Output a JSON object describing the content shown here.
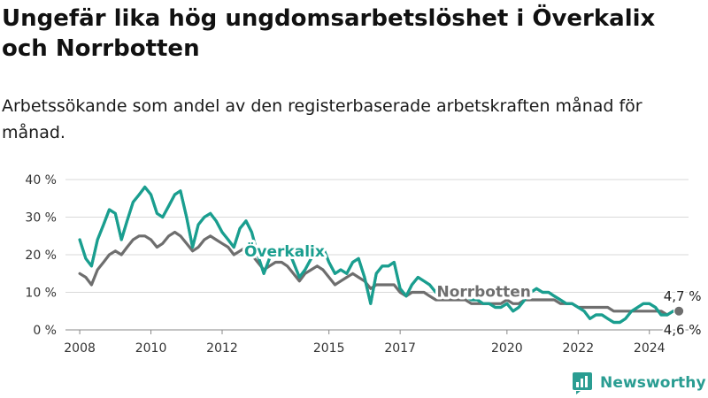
{
  "title": "Ungefär lika hög ungdomsarbetslöshet i Överkalix och Norrbotten",
  "subtitle": "Arbetssökande som andel av den registerbaserade arbetskraften månad för månad.",
  "brand": "Newsworthy",
  "colors": {
    "overkalix": "#1a9e8f",
    "norrbotten": "#6e6e6e",
    "grid": "#d9d9d9"
  },
  "chart_data": {
    "type": "line",
    "title": "Ungefär lika hög ungdomsarbetslöshet i Överkalix och Norrbotten",
    "subtitle": "Arbetssökande som andel av den registerbaserade arbetskraften månad för månad.",
    "x_ticks": [
      "2008",
      "2010",
      "2012",
      "2015",
      "2017",
      "2020",
      "2022",
      "2024"
    ],
    "y_ticks": [
      "0 %",
      "10 %",
      "20 %",
      "30 %",
      "40 %"
    ],
    "ylim": [
      0,
      40
    ],
    "xlim": [
      2007.6,
      2025.1
    ],
    "grid": true,
    "series": [
      {
        "name": "Överkalix",
        "color": "#1a9e8f",
        "last_label": "4,7 %",
        "x": [
          2008.0,
          2008.17,
          2008.33,
          2008.5,
          2008.67,
          2008.83,
          2009.0,
          2009.17,
          2009.33,
          2009.5,
          2009.67,
          2009.83,
          2010.0,
          2010.17,
          2010.33,
          2010.5,
          2010.67,
          2010.83,
          2011.0,
          2011.17,
          2011.33,
          2011.5,
          2011.67,
          2011.83,
          2012.0,
          2012.17,
          2012.33,
          2012.5,
          2012.67,
          2012.83,
          2013.0,
          2013.17,
          2013.33,
          2013.5,
          2013.67,
          2013.83,
          2014.0,
          2014.17,
          2014.33,
          2014.5,
          2014.67,
          2014.83,
          2015.0,
          2015.17,
          2015.33,
          2015.5,
          2015.67,
          2015.83,
          2016.0,
          2016.17,
          2016.33,
          2016.5,
          2016.67,
          2016.83,
          2017.0,
          2017.17,
          2017.33,
          2017.5,
          2017.67,
          2017.83,
          2018.0,
          2018.17,
          2018.33,
          2018.5,
          2018.67,
          2018.83,
          2019.0,
          2019.17,
          2019.33,
          2019.5,
          2019.67,
          2019.83,
          2020.0,
          2020.17,
          2020.33,
          2020.5,
          2020.67,
          2020.83,
          2021.0,
          2021.17,
          2021.33,
          2021.5,
          2021.67,
          2021.83,
          2022.0,
          2022.17,
          2022.33,
          2022.5,
          2022.67,
          2022.83,
          2023.0,
          2023.17,
          2023.33,
          2023.5,
          2023.67,
          2023.83,
          2024.0,
          2024.17,
          2024.33,
          2024.5,
          2024.67,
          2024.83
        ],
        "y": [
          24,
          19,
          17,
          24,
          28,
          32,
          31,
          24,
          29,
          34,
          36,
          38,
          36,
          31,
          30,
          33,
          36,
          37,
          30,
          22,
          28,
          30,
          31,
          29,
          26,
          24,
          22,
          27,
          29,
          26,
          20,
          15,
          19,
          21,
          22,
          22,
          18,
          14,
          16,
          19,
          21,
          22,
          18,
          15,
          16,
          15,
          18,
          19,
          14,
          7,
          15,
          17,
          17,
          18,
          11,
          9,
          12,
          14,
          13,
          12,
          10,
          11,
          11,
          9,
          10,
          9,
          8,
          8,
          7,
          7,
          6,
          6,
          7,
          5,
          6,
          8,
          10,
          11,
          10,
          10,
          9,
          8,
          7,
          7,
          6,
          5,
          3,
          4,
          4,
          3,
          2,
          2,
          3,
          5,
          6,
          7,
          7,
          6,
          4,
          4,
          5,
          5
        ]
      },
      {
        "name": "Norrbotten",
        "color": "#6e6e6e",
        "last_label": "4,6 %",
        "x": [
          2008.0,
          2008.17,
          2008.33,
          2008.5,
          2008.67,
          2008.83,
          2009.0,
          2009.17,
          2009.33,
          2009.5,
          2009.67,
          2009.83,
          2010.0,
          2010.17,
          2010.33,
          2010.5,
          2010.67,
          2010.83,
          2011.0,
          2011.17,
          2011.33,
          2011.5,
          2011.67,
          2011.83,
          2012.0,
          2012.17,
          2012.33,
          2012.5,
          2012.67,
          2012.83,
          2013.0,
          2013.17,
          2013.33,
          2013.5,
          2013.67,
          2013.83,
          2014.0,
          2014.17,
          2014.33,
          2014.5,
          2014.67,
          2014.83,
          2015.0,
          2015.17,
          2015.33,
          2015.5,
          2015.67,
          2015.83,
          2016.0,
          2016.17,
          2016.33,
          2016.5,
          2016.67,
          2016.83,
          2017.0,
          2017.17,
          2017.33,
          2017.5,
          2017.67,
          2017.83,
          2018.0,
          2018.17,
          2018.33,
          2018.5,
          2018.67,
          2018.83,
          2019.0,
          2019.17,
          2019.33,
          2019.5,
          2019.67,
          2019.83,
          2020.0,
          2020.17,
          2020.33,
          2020.5,
          2020.67,
          2020.83,
          2021.0,
          2021.17,
          2021.33,
          2021.5,
          2021.67,
          2021.83,
          2022.0,
          2022.17,
          2022.33,
          2022.5,
          2022.67,
          2022.83,
          2023.0,
          2023.17,
          2023.33,
          2023.5,
          2023.67,
          2023.83,
          2024.0,
          2024.17,
          2024.33,
          2024.5,
          2024.67,
          2024.83
        ],
        "y": [
          15,
          14,
          12,
          16,
          18,
          20,
          21,
          20,
          22,
          24,
          25,
          25,
          24,
          22,
          23,
          25,
          26,
          25,
          23,
          21,
          22,
          24,
          25,
          24,
          23,
          22,
          20,
          21,
          22,
          20,
          18,
          16,
          17,
          18,
          18,
          17,
          15,
          13,
          15,
          16,
          17,
          16,
          14,
          12,
          13,
          14,
          15,
          14,
          13,
          11,
          12,
          12,
          12,
          12,
          10,
          9,
          10,
          10,
          10,
          9,
          8,
          8,
          8,
          8,
          8,
          8,
          7,
          7,
          7,
          7,
          7,
          7,
          8,
          7,
          7,
          8,
          8,
          8,
          8,
          8,
          8,
          7,
          7,
          7,
          6,
          6,
          6,
          6,
          6,
          6,
          5,
          5,
          5,
          5,
          5,
          5,
          5,
          5,
          5,
          4,
          5,
          5
        ]
      }
    ],
    "annotations": [
      {
        "text": "Överkalix",
        "series": "Överkalix"
      },
      {
        "text": "Norrbotten",
        "series": "Norrbotten"
      }
    ]
  }
}
